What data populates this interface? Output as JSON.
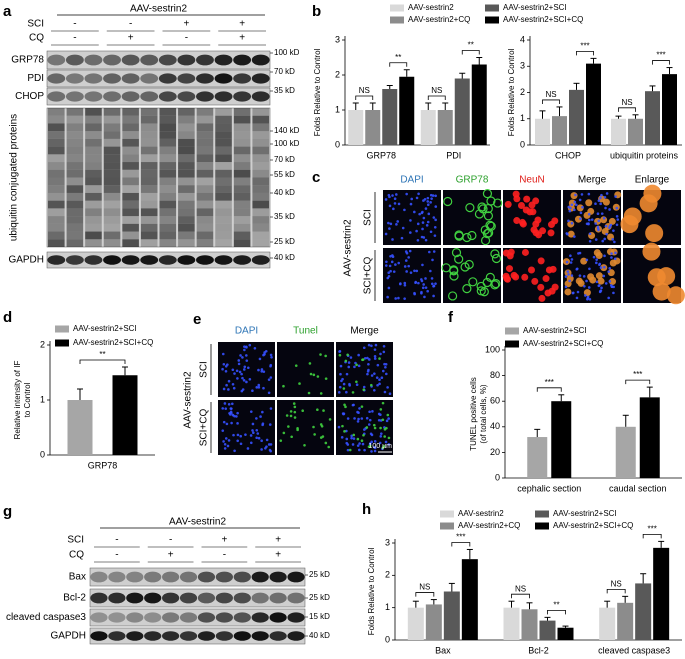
{
  "panels": {
    "a": {
      "letter": "a",
      "group": "AAV-sestrin2",
      "conditions": [
        {
          "name": "SCI",
          "signs": [
            "-",
            "-",
            "+",
            "+"
          ]
        },
        {
          "name": "CQ",
          "signs": [
            "-",
            "+",
            "-",
            "+"
          ]
        }
      ],
      "blots": [
        "GRP78",
        "PDI",
        "CHOP",
        "ubiquitin conjugated proteins",
        "GAPDH"
      ],
      "markers": [
        "100 kD",
        "70 kD",
        "35 kD",
        "140 kD",
        "100 kD",
        "70 kD",
        "55 kD",
        "40 kD",
        "35 kD",
        "25 kD",
        "40 kD"
      ]
    },
    "b": {
      "letter": "b"
    },
    "c": {
      "letter": "c",
      "group": "AAV-sestrin2",
      "channels": [
        "DAPI",
        "GRP78",
        "NeuN",
        "Merge",
        "Enlarge"
      ],
      "rows": [
        "SCI",
        "SCI+CQ"
      ]
    },
    "d": {
      "letter": "d"
    },
    "e": {
      "letter": "e",
      "group": "AAV-sestrin2",
      "channels": [
        "DAPI",
        "Tunel",
        "Merge"
      ],
      "rows": [
        "SCI",
        "SCI+CQ"
      ],
      "scale_bar": "100 µm"
    },
    "f": {
      "letter": "f"
    },
    "g": {
      "letter": "g",
      "group": "AAV-sestrin2",
      "conditions": [
        {
          "name": "SCI",
          "signs": [
            "-",
            "-",
            "+",
            "+"
          ]
        },
        {
          "name": "CQ",
          "signs": [
            "-",
            "+",
            "-",
            "+"
          ]
        }
      ],
      "blots": [
        "Bax",
        "Bcl-2",
        "cleaved caspase3",
        "GAPDH"
      ],
      "markers": [
        "25 kD",
        "25 kD",
        "15 kD",
        "40 kD"
      ]
    },
    "h": {
      "letter": "h"
    }
  },
  "chart_data": [
    {
      "type": "bar",
      "ylabel": [
        "Folds Relative to Control"
      ],
      "categories": [
        "GRP78",
        "PDI"
      ],
      "ylim": [
        0,
        3
      ],
      "yticks": [
        0,
        1,
        2,
        3
      ],
      "series": [
        {
          "name": "AAV-sestrin2",
          "color": "#d9d9d9",
          "values": [
            1.0,
            1.0
          ],
          "errors": [
            0.2,
            0.2
          ]
        },
        {
          "name": "AAV-sestrin2+CQ",
          "color": "#8c8c8c",
          "values": [
            1.0,
            1.0
          ],
          "errors": [
            0.2,
            0.2
          ]
        },
        {
          "name": "AAV-sestrin2+SCI",
          "color": "#595959",
          "values": [
            1.6,
            1.9
          ],
          "errors": [
            0.1,
            0.15
          ]
        },
        {
          "name": "AAV-sestrin2+SCI+CQ",
          "color": "#000000",
          "values": [
            1.95,
            2.3
          ],
          "errors": [
            0.2,
            0.2
          ]
        }
      ],
      "annotations": [
        "NS",
        "**",
        "NS",
        "**"
      ]
    },
    {
      "type": "bar",
      "ylabel": [
        "Folds Relative to Control"
      ],
      "categories": [
        "CHOP",
        "ubiquitin proteins"
      ],
      "ylim": [
        0,
        4
      ],
      "yticks": [
        0,
        1,
        2,
        3,
        4
      ],
      "series": [
        {
          "color": "#d9d9d9",
          "values": [
            1.0,
            1.0
          ],
          "errors": [
            0.3,
            0.1
          ]
        },
        {
          "color": "#8c8c8c",
          "values": [
            1.1,
            1.0
          ],
          "errors": [
            0.35,
            0.15
          ]
        },
        {
          "color": "#595959",
          "values": [
            2.1,
            2.05
          ],
          "errors": [
            0.25,
            0.2
          ]
        },
        {
          "color": "#000000",
          "values": [
            3.1,
            2.7
          ],
          "errors": [
            0.2,
            0.25
          ]
        }
      ],
      "annotations": [
        "NS",
        "***",
        "NS",
        "***"
      ]
    },
    {
      "type": "bar",
      "ylabel": [
        "Relative intensity of IF",
        "to Control"
      ],
      "categories": [
        "GRP78"
      ],
      "ylim": [
        0,
        2
      ],
      "yticks": [
        0,
        1,
        2
      ],
      "series": [
        {
          "name": "AAV-sestrin2+SCI",
          "color": "#a6a6a6",
          "values": [
            1.0
          ],
          "errors": [
            0.2
          ]
        },
        {
          "name": "AAV-sestrin2+SCI+CQ",
          "color": "#000000",
          "values": [
            1.45
          ],
          "errors": [
            0.15
          ]
        }
      ],
      "annotations": [
        "**"
      ]
    },
    {
      "type": "bar",
      "ylabel": [
        "TUNEL positive cells",
        "(of total cells, %)"
      ],
      "categories": [
        "cephalic section",
        "caudal section"
      ],
      "ylim": [
        0,
        100
      ],
      "yticks": [
        0,
        20,
        40,
        60,
        80,
        100
      ],
      "series": [
        {
          "name": "AAV-sestrin2+SCI",
          "color": "#a6a6a6",
          "values": [
            32,
            40
          ],
          "errors": [
            6,
            9
          ]
        },
        {
          "name": "AAV-sestrin2+SCI+CQ",
          "color": "#000000",
          "values": [
            60,
            63
          ],
          "errors": [
            5,
            8
          ]
        }
      ],
      "annotations": [
        "***",
        "***"
      ]
    },
    {
      "type": "bar",
      "ylabel": [
        "Folds Relative to Control"
      ],
      "categories": [
        "Bax",
        "Bcl-2",
        "cleaved caspase3"
      ],
      "ylim": [
        0,
        3
      ],
      "yticks": [
        0,
        1,
        2,
        3
      ],
      "series": [
        {
          "name": "AAV-sestrin2",
          "color": "#d9d9d9",
          "values": [
            1.0,
            1.0,
            1.0
          ],
          "errors": [
            0.2,
            0.2,
            0.2
          ]
        },
        {
          "name": "AAV-sestrin2+CQ",
          "color": "#8c8c8c",
          "values": [
            1.1,
            0.95,
            1.15
          ],
          "errors": [
            0.15,
            0.2,
            0.2
          ]
        },
        {
          "name": "AAV-sestrin2+SCI",
          "color": "#595959",
          "values": [
            1.5,
            0.6,
            1.75
          ],
          "errors": [
            0.25,
            0.1,
            0.3
          ]
        },
        {
          "name": "AAV-sestrin2+SCI+CQ",
          "color": "#000000",
          "values": [
            2.5,
            0.38,
            2.85
          ],
          "errors": [
            0.3,
            0.05,
            0.2
          ]
        }
      ],
      "annotations": [
        "NS",
        "***",
        "NS",
        "**",
        "NS",
        "***"
      ]
    }
  ]
}
